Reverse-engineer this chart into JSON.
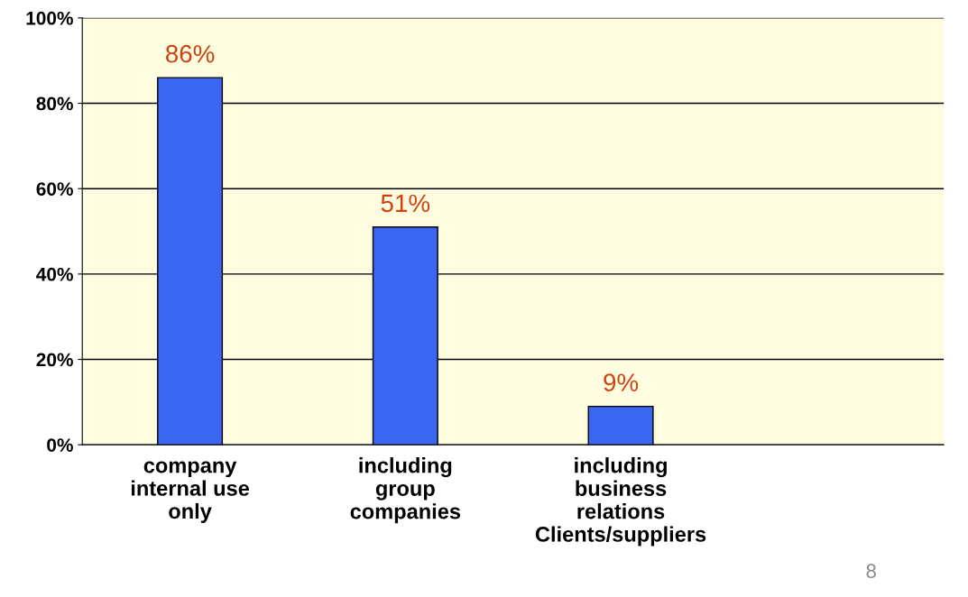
{
  "chart_data": {
    "type": "bar",
    "categories": [
      "company\ninternal use\nonly",
      "including\ngroup\ncompanies",
      "including\nbusiness\nrelations\nClients/suppliers",
      null
    ],
    "values": [
      86,
      51,
      9,
      null
    ],
    "color": "#3a66f0",
    "value_labels": [
      "86%",
      "51%",
      "9%",
      null
    ],
    "ylim": [
      0,
      100
    ],
    "yticks": [
      {
        "value": 0,
        "label": "0%"
      },
      {
        "value": 20,
        "label": "20%"
      },
      {
        "value": 40,
        "label": "40%"
      },
      {
        "value": 60,
        "label": "60%"
      },
      {
        "value": 80,
        "label": "80%"
      },
      {
        "value": 100,
        "label": "100%"
      }
    ],
    "grid": "y",
    "annotations": [
      "8"
    ]
  }
}
